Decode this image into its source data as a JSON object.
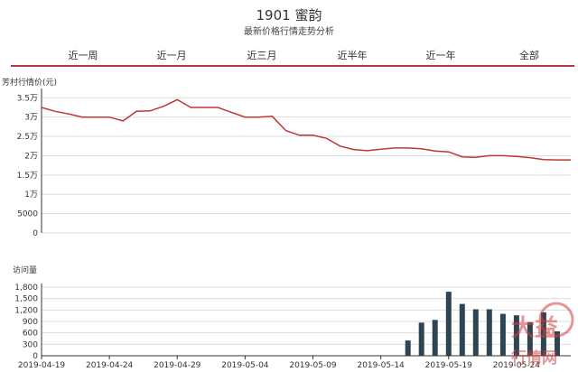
{
  "header": {
    "title": "1901 蜜韵",
    "subtitle": "最新价格行情走势分析"
  },
  "tabs": [
    {
      "label": "近一周"
    },
    {
      "label": "近一月"
    },
    {
      "label": "近三月"
    },
    {
      "label": "近半年"
    },
    {
      "label": "近一年"
    },
    {
      "label": "全部"
    }
  ],
  "colors": {
    "accent": "#b23a3a",
    "price_line": "#c23531",
    "bars": "#2f4554",
    "grid": "#dddddd"
  },
  "watermark": {
    "text": "大益",
    "subtext": "行情网",
    "color": "#d04040"
  },
  "chart_data": [
    {
      "type": "line",
      "ylabel": "芳村行情价(元)",
      "ylim": [
        0,
        36000
      ],
      "yticks": [
        0,
        5000,
        10000,
        15000,
        20000,
        25000,
        30000,
        35000
      ],
      "ytick_labels": [
        "0",
        "5000",
        "1万",
        "1.5万",
        "2万",
        "2.5万",
        "3万",
        "3.5万"
      ],
      "xlim": [
        "2019-04-19",
        "2019-05-28"
      ],
      "grid": true,
      "series": [
        {
          "x": [
            "2019-04-19",
            "2019-04-20",
            "2019-04-21",
            "2019-04-22",
            "2019-04-23",
            "2019-04-24",
            "2019-04-25",
            "2019-04-26",
            "2019-04-27",
            "2019-04-28",
            "2019-04-29",
            "2019-04-30",
            "2019-05-01",
            "2019-05-02",
            "2019-05-03",
            "2019-05-04",
            "2019-05-05",
            "2019-05-06",
            "2019-05-07",
            "2019-05-08",
            "2019-05-09",
            "2019-05-10",
            "2019-05-11",
            "2019-05-12",
            "2019-05-13",
            "2019-05-14",
            "2019-05-15",
            "2019-05-16",
            "2019-05-17",
            "2019-05-18",
            "2019-05-19",
            "2019-05-20",
            "2019-05-21",
            "2019-05-22",
            "2019-05-23",
            "2019-05-24",
            "2019-05-25",
            "2019-05-26",
            "2019-05-27",
            "2019-05-28"
          ],
          "values": [
            32500,
            31500,
            30800,
            30000,
            30000,
            30000,
            29000,
            31500,
            31600,
            32800,
            34500,
            32500,
            32500,
            32500,
            31200,
            30000,
            30000,
            30200,
            26500,
            25300,
            25300,
            24500,
            22500,
            21600,
            21300,
            21700,
            22000,
            22000,
            21800,
            21200,
            21000,
            19700,
            19600,
            20000,
            20000,
            19800,
            19500,
            19000,
            18900,
            18900
          ]
        }
      ]
    },
    {
      "type": "bar",
      "ylabel": "访问量",
      "ylim": [
        0,
        1800
      ],
      "yticks": [
        0,
        300,
        600,
        900,
        1200,
        1500,
        1800
      ],
      "ytick_labels": [
        "0",
        "300",
        "600",
        "900",
        "1,200",
        "1,500",
        "1,800"
      ],
      "xlim": [
        "2019-04-19",
        "2019-05-28"
      ],
      "xtick_labels": [
        "2019-04-19",
        "2019-04-24",
        "2019-04-29",
        "2019-05-04",
        "2019-05-09",
        "2019-05-14",
        "2019-05-19",
        "2019-05-24"
      ],
      "grid": true,
      "series": [
        {
          "x": [
            "2019-05-16",
            "2019-05-17",
            "2019-05-18",
            "2019-05-19",
            "2019-05-20",
            "2019-05-21",
            "2019-05-22",
            "2019-05-23",
            "2019-05-24",
            "2019-05-25",
            "2019-05-26",
            "2019-05-27"
          ],
          "values": [
            400,
            870,
            940,
            1680,
            1360,
            1220,
            1220,
            1100,
            1060,
            880,
            1140,
            640
          ]
        }
      ]
    }
  ]
}
